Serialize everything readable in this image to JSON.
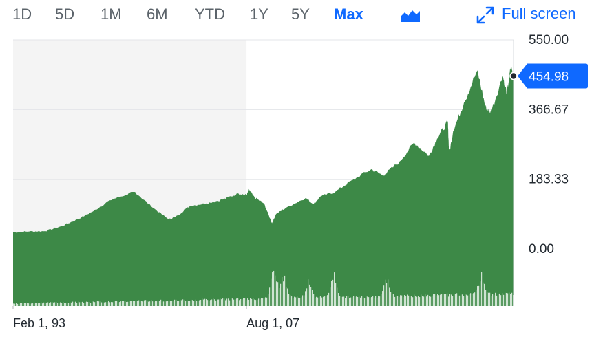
{
  "toolbar": {
    "ranges": [
      "1D",
      "5D",
      "1M",
      "6M",
      "YTD",
      "1Y",
      "5Y",
      "Max"
    ],
    "active_range": "Max",
    "chart_type_icon": "mountain-chart-icon",
    "fullscreen_icon": "expand-arrows-icon",
    "fullscreen_label": "Full screen"
  },
  "colors": {
    "accent": "#0f69ff",
    "area_fill": "#3d8947",
    "volume": "#cfe3d2",
    "shaded_region": "#f4f4f4",
    "text": "#232a31"
  },
  "chart_data": {
    "type": "area",
    "x": [
      "1993-02",
      "1994-02",
      "1995-02",
      "1996-02",
      "1997-02",
      "1998-02",
      "1999-02",
      "2000-02",
      "2000-09",
      "2001-09",
      "2002-10",
      "2003-03",
      "2004-02",
      "2005-02",
      "2006-02",
      "2007-02",
      "2007-08",
      "2007-10",
      "2008-02",
      "2008-09",
      "2009-03",
      "2009-06",
      "2010-02",
      "2011-04",
      "2011-10",
      "2012-03",
      "2013-02",
      "2014-02",
      "2015-05",
      "2016-02",
      "2017-02",
      "2018-01",
      "2018-12",
      "2019-06",
      "2020-02",
      "2020-03",
      "2020-06",
      "2021-02",
      "2021-12",
      "2022-06",
      "2022-10",
      "2023-07",
      "2023-10",
      "2024-01",
      "2024-03"
    ],
    "values": [
      44,
      46,
      47,
      60,
      78,
      100,
      128,
      143,
      150,
      112,
      78,
      84,
      114,
      120,
      130,
      146,
      142,
      156,
      135,
      120,
      68,
      92,
      110,
      134,
      118,
      138,
      150,
      180,
      210,
      193,
      230,
      280,
      245,
      290,
      335,
      250,
      310,
      385,
      470,
      375,
      358,
      455,
      410,
      480,
      455
    ],
    "last_value": "454.98",
    "y_ticks": [
      "550.00",
      "366.67",
      "183.33",
      "0.00"
    ],
    "x_ticks": [
      "Feb 1, 93",
      "Aug 1, 07"
    ],
    "x_tick_dates": [
      "1993-02-01",
      "2007-08-01"
    ],
    "shaded_range": [
      "1993-02-01",
      "2007-08-01"
    ],
    "ylim": [
      -150,
      550
    ],
    "grid": true,
    "volume_series": "shown"
  }
}
